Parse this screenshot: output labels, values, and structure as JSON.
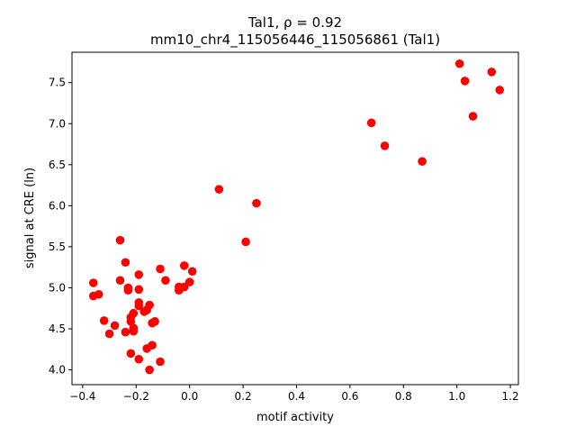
{
  "chart_data": {
    "type": "scatter",
    "title_line1": "Tal1, ρ = 0.92",
    "title_line2": "mm10_chr4_115056446_115056861 (Tal1)",
    "xlabel": "motif activity",
    "ylabel": "signal at CRE (ln)",
    "xlim": [
      -0.44,
      1.23
    ],
    "ylim": [
      3.82,
      7.87
    ],
    "xticks": [
      -0.4,
      -0.2,
      0.0,
      0.2,
      0.4,
      0.6,
      0.8,
      1.0,
      1.2
    ],
    "xtick_labels": [
      "−0.4",
      "−0.2",
      "0.0",
      "0.2",
      "0.4",
      "0.6",
      "0.8",
      "1.0",
      "1.2"
    ],
    "yticks": [
      4.0,
      4.5,
      5.0,
      5.5,
      6.0,
      6.5,
      7.0,
      7.5
    ],
    "ytick_labels": [
      "4.0",
      "4.5",
      "5.0",
      "5.5",
      "6.0",
      "6.5",
      "7.0",
      "7.5"
    ],
    "grid": false,
    "marker_color": "#ff0000",
    "points": [
      [
        1.01,
        7.73
      ],
      [
        1.03,
        7.52
      ],
      [
        1.13,
        7.63
      ],
      [
        1.16,
        7.41
      ],
      [
        1.06,
        7.09
      ],
      [
        0.68,
        7.01
      ],
      [
        0.73,
        6.73
      ],
      [
        0.87,
        6.54
      ],
      [
        0.11,
        6.2
      ],
      [
        0.25,
        6.03
      ],
      [
        0.21,
        5.56
      ],
      [
        -0.26,
        5.58
      ],
      [
        -0.24,
        5.31
      ],
      [
        -0.11,
        5.23
      ],
      [
        -0.02,
        5.27
      ],
      [
        0.01,
        5.2
      ],
      [
        -0.19,
        5.16
      ],
      [
        -0.09,
        5.09
      ],
      [
        -0.26,
        5.09
      ],
      [
        -0.36,
        5.06
      ],
      [
        0.0,
        5.07
      ],
      [
        -0.02,
        5.01
      ],
      [
        -0.04,
        5.01
      ],
      [
        -0.04,
        4.97
      ],
      [
        -0.23,
        5.0
      ],
      [
        -0.23,
        4.97
      ],
      [
        -0.19,
        4.98
      ],
      [
        -0.34,
        4.92
      ],
      [
        -0.36,
        4.9
      ],
      [
        -0.19,
        4.82
      ],
      [
        -0.15,
        4.79
      ],
      [
        -0.19,
        4.78
      ],
      [
        -0.16,
        4.73
      ],
      [
        -0.17,
        4.71
      ],
      [
        -0.21,
        4.69
      ],
      [
        -0.22,
        4.64
      ],
      [
        -0.22,
        4.59
      ],
      [
        -0.32,
        4.6
      ],
      [
        -0.28,
        4.54
      ],
      [
        -0.21,
        4.51
      ],
      [
        -0.21,
        4.47
      ],
      [
        -0.24,
        4.46
      ],
      [
        -0.3,
        4.44
      ],
      [
        -0.13,
        4.59
      ],
      [
        -0.14,
        4.57
      ],
      [
        -0.22,
        4.2
      ],
      [
        -0.14,
        4.3
      ],
      [
        -0.16,
        4.26
      ],
      [
        -0.19,
        4.13
      ],
      [
        -0.11,
        4.1
      ],
      [
        -0.15,
        4.0
      ]
    ]
  }
}
